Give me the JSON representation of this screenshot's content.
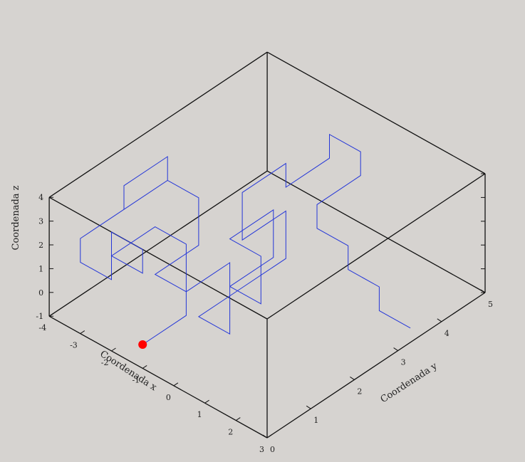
{
  "chart_data": {
    "type": "line3d",
    "title": "",
    "xlabel": "Coordenada x",
    "ylabel": "Coordenada y",
    "zlabel": "Coordenada z",
    "xlim": [
      -4,
      3
    ],
    "ylim": [
      0,
      5
    ],
    "zlim": [
      -1,
      4
    ],
    "x_ticks": [
      "-4",
      "-3",
      "-2",
      "-1",
      "0",
      "1",
      "2",
      "3"
    ],
    "y_ticks": [
      "0",
      "1",
      "2",
      "3",
      "4",
      "5"
    ],
    "z_ticks": [
      "-1",
      "0",
      "1",
      "2",
      "3",
      "4"
    ],
    "grid": false,
    "line_color": "#2436d8",
    "marker_color": "#ff0000",
    "box_color": "#111111",
    "start_point": [
      -1,
      0,
      0
    ],
    "path": [
      [
        -1,
        0,
        0
      ],
      [
        -1,
        1,
        0
      ],
      [
        -1,
        1,
        1
      ],
      [
        -2,
        1,
        1
      ],
      [
        -2,
        2,
        1
      ],
      [
        -2,
        2,
        2
      ],
      [
        -2,
        2,
        3
      ],
      [
        -3,
        2,
        3
      ],
      [
        -3,
        1,
        3
      ],
      [
        -3,
        1,
        4
      ],
      [
        -3,
        2,
        4
      ],
      [
        -3,
        2,
        3
      ],
      [
        -3,
        1,
        3
      ],
      [
        -3,
        0,
        3
      ],
      [
        -3,
        0,
        2
      ],
      [
        -2,
        0,
        2
      ],
      [
        -2,
        0,
        3
      ],
      [
        -2,
        0,
        4
      ],
      [
        -1,
        0,
        4
      ],
      [
        -1,
        0,
        3
      ],
      [
        -2,
        0,
        3
      ],
      [
        -2,
        1,
        3
      ],
      [
        -1,
        1,
        3
      ],
      [
        -1,
        1,
        2
      ],
      [
        -1,
        1,
        1
      ],
      [
        -1,
        2,
        1
      ],
      [
        -1,
        2,
        0
      ],
      [
        0,
        2,
        0
      ],
      [
        0,
        2,
        1
      ],
      [
        0,
        2,
        2
      ],
      [
        -1,
        2,
        2
      ],
      [
        -1,
        3,
        2
      ],
      [
        -1,
        3,
        1
      ],
      [
        -1,
        3,
        0
      ],
      [
        -1,
        2,
        0
      ],
      [
        -1,
        2,
        -1
      ],
      [
        -1,
        2,
        -2
      ],
      [
        -2,
        2,
        -2
      ],
      [
        -2,
        3,
        -2
      ],
      [
        -2,
        4,
        -2
      ],
      [
        -2,
        4,
        -1
      ],
      [
        -2,
        4,
        0
      ],
      [
        -2,
        3,
        0
      ],
      [
        -2,
        3,
        1
      ],
      [
        -2,
        3,
        2
      ],
      [
        -2,
        4,
        2
      ],
      [
        -2,
        4,
        1
      ],
      [
        -2,
        5,
        1
      ],
      [
        -2,
        5,
        2
      ],
      [
        -1,
        5,
        2
      ],
      [
        -1,
        5,
        1
      ],
      [
        -1,
        4,
        1
      ],
      [
        -1,
        4,
        0
      ],
      [
        0,
        4,
        0
      ],
      [
        0,
        4,
        -1
      ],
      [
        1,
        4,
        -1
      ],
      [
        1,
        4,
        -2
      ],
      [
        2,
        4,
        -2
      ]
    ]
  }
}
